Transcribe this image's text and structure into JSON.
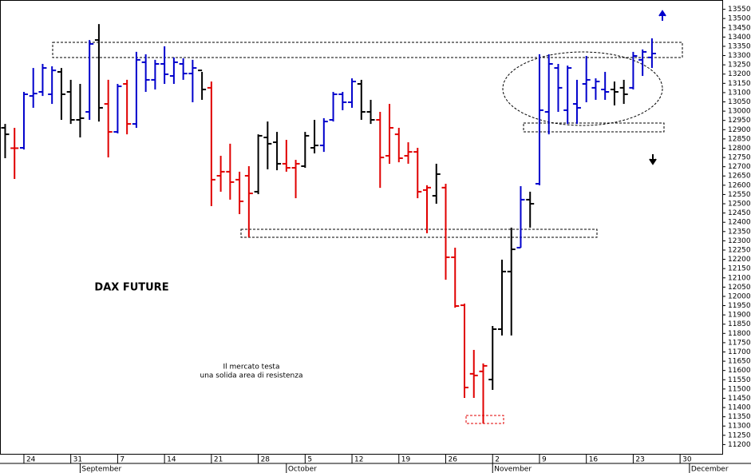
{
  "chart_data": {
    "type": "ohlc",
    "title": "DAX FUTURE",
    "annotation": [
      "Il mercato testa",
      "una solida area di resistenza"
    ],
    "categories": [
      null,
      null,
      null,
      null,
      null,
      null,
      null,
      null,
      null,
      null,
      null,
      null,
      null,
      null,
      null,
      null,
      null,
      null,
      null,
      null,
      null,
      null,
      null,
      null,
      null,
      null,
      null,
      null,
      null,
      null,
      null,
      null,
      null,
      null,
      null,
      null,
      null,
      null,
      null,
      null,
      null,
      null,
      null,
      null,
      null,
      null,
      null,
      null,
      null,
      null,
      null,
      null,
      null,
      null,
      null,
      null,
      null,
      null,
      null,
      null,
      null,
      null,
      null,
      null,
      null,
      null,
      null,
      null,
      null,
      null
    ],
    "open": [
      12910,
      12800,
      12802,
      13082,
      13104,
      13091,
      13212,
      13104,
      12953,
      12996,
      13384,
      13039,
      12888,
      13147,
      12931,
      13264,
      13169,
      13255,
      13190,
      13255,
      13203,
      13220,
      13126,
      12651,
      12673,
      12630,
      12651,
      12565,
      12858,
      12832,
      12716,
      12694,
      12703,
      12802,
      12815,
      12953,
      13091,
      13048,
      13147,
      12996,
      12953,
      12759,
      12875,
      12759,
      12780,
      12574,
      12543,
      12587,
      12211,
      11952,
      11582,
      11595,
      11551,
      11823,
      12134,
      12263,
      12522,
      12608,
      12996,
      13233,
      13005,
      13039,
      13147,
      13126,
      13117,
      13117,
      13126,
      13126,
      13277,
      13290
    ],
    "high": [
      12931,
      12910,
      13104,
      13233,
      13255,
      13242,
      13233,
      13169,
      13147,
      13384,
      13470,
      13169,
      13147,
      13169,
      13320,
      13307,
      13277,
      13350,
      13290,
      13285,
      13277,
      13212,
      13160,
      12759,
      12824,
      12673,
      12703,
      12875,
      12944,
      12888,
      12845,
      12737,
      12888,
      12953,
      12962,
      13104,
      13104,
      13177,
      13169,
      13061,
      12996,
      13039,
      12910,
      12832,
      12802,
      12600,
      12716,
      12608,
      12263,
      11961,
      11711,
      11638,
      11840,
      12198,
      12371,
      12595,
      12565,
      13307,
      13307,
      13255,
      13246,
      13169,
      13298,
      13177,
      13212,
      13160,
      13169,
      13320,
      13333,
      13393
    ],
    "low": [
      12746,
      12634,
      12793,
      13018,
      13082,
      13039,
      12953,
      12931,
      12858,
      12953,
      12944,
      12750,
      12880,
      12875,
      12910,
      13104,
      13117,
      13147,
      13147,
      13169,
      13048,
      13061,
      12487,
      12565,
      12522,
      12444,
      12319,
      12552,
      12686,
      12681,
      12673,
      12530,
      12694,
      12772,
      12780,
      12944,
      13005,
      13018,
      12953,
      12931,
      12586,
      12716,
      12724,
      12716,
      12530,
      12341,
      12500,
      12090,
      11939,
      11452,
      11452,
      11314,
      11495,
      11789,
      11789,
      12263,
      12371,
      12600,
      12875,
      12996,
      12931,
      12931,
      13048,
      13061,
      13061,
      13031,
      13039,
      13117,
      13190,
      13233
    ],
    "close": [
      12875,
      12800,
      13091,
      13095,
      13233,
      13220,
      13091,
      12953,
      12962,
      13363,
      13018,
      12888,
      13134,
      12931,
      13277,
      13169,
      13255,
      13199,
      13264,
      13203,
      13233,
      13117,
      12630,
      12673,
      12617,
      12513,
      12556,
      12867,
      12824,
      12716,
      12694,
      12716,
      12867,
      12815,
      12944,
      13091,
      13048,
      13160,
      12996,
      12953,
      12750,
      12910,
      12746,
      12780,
      12565,
      12587,
      12660,
      12211,
      11948,
      11508,
      11573,
      11625,
      11823,
      12134,
      12254,
      12522,
      12500,
      13005,
      13255,
      13126,
      13233,
      13018,
      13169,
      13160,
      13104,
      13104,
      13091,
      13298,
      13320,
      13311
    ],
    "colors": [
      "#000000",
      "#e00000",
      "#0000cc",
      "#0000cc",
      "#0000cc",
      "#0000cc",
      "#000000",
      "#000000",
      "#000000",
      "#0000cc",
      "#000000",
      "#e00000",
      "#0000cc",
      "#e00000",
      "#0000cc",
      "#0000cc",
      "#0000cc",
      "#0000cc",
      "#0000cc",
      "#0000cc",
      "#0000cc",
      "#000000",
      "#e00000",
      "#e00000",
      "#e00000",
      "#e00000",
      "#e00000",
      "#000000",
      "#000000",
      "#000000",
      "#e00000",
      "#e00000",
      "#000000",
      "#000000",
      "#0000cc",
      "#0000cc",
      "#0000cc",
      "#0000cc",
      "#000000",
      "#000000",
      "#e00000",
      "#e00000",
      "#e00000",
      "#e00000",
      "#e00000",
      "#e00000",
      "#000000",
      "#e00000",
      "#e00000",
      "#e00000",
      "#e00000",
      "#e00000",
      "#000000",
      "#000000",
      "#000000",
      "#0000cc",
      "#000000",
      "#0000cc",
      "#0000cc",
      "#0000cc",
      "#0000cc",
      "#0000cc",
      "#0000cc",
      "#0000cc",
      "#0000cc",
      "#000000",
      "#000000",
      "#0000cc",
      "#0000cc",
      "#0000cc"
    ],
    "xlim": [
      -0.55,
      76.5
    ],
    "xticks": [
      {
        "value": 2,
        "label": "24"
      },
      {
        "value": 7,
        "label": "31"
      },
      {
        "value": 12,
        "label": "7"
      },
      {
        "value": 17,
        "label": "14"
      },
      {
        "value": 22,
        "label": "21"
      },
      {
        "value": 27,
        "label": "28"
      },
      {
        "value": 32,
        "label": "5"
      },
      {
        "value": 37,
        "label": "12"
      },
      {
        "value": 42,
        "label": "19"
      },
      {
        "value": 47,
        "label": "26"
      },
      {
        "value": 52,
        "label": "2"
      },
      {
        "value": 57,
        "label": "9"
      },
      {
        "value": 62,
        "label": "16"
      },
      {
        "value": 67,
        "label": "23"
      },
      {
        "value": 72,
        "label": "30"
      }
    ],
    "month_ticks": [
      {
        "value": 8,
        "label": "September"
      },
      {
        "value": 30,
        "label": "October"
      },
      {
        "value": 52,
        "label": "November"
      },
      {
        "value": 73,
        "label": "December"
      }
    ],
    "ylim": [
      11150,
      13600
    ],
    "yticks": [
      11200,
      11250,
      11300,
      11350,
      11400,
      11450,
      11500,
      11550,
      11600,
      11650,
      11700,
      11750,
      11800,
      11850,
      11900,
      11950,
      12000,
      12050,
      12100,
      12150,
      12200,
      12250,
      12300,
      12350,
      12400,
      12450,
      12500,
      12550,
      12600,
      12650,
      12700,
      12750,
      12800,
      12850,
      12900,
      12950,
      13000,
      13050,
      13100,
      13150,
      13200,
      13250,
      13300,
      13350,
      13400,
      13450,
      13500,
      13550
    ]
  }
}
